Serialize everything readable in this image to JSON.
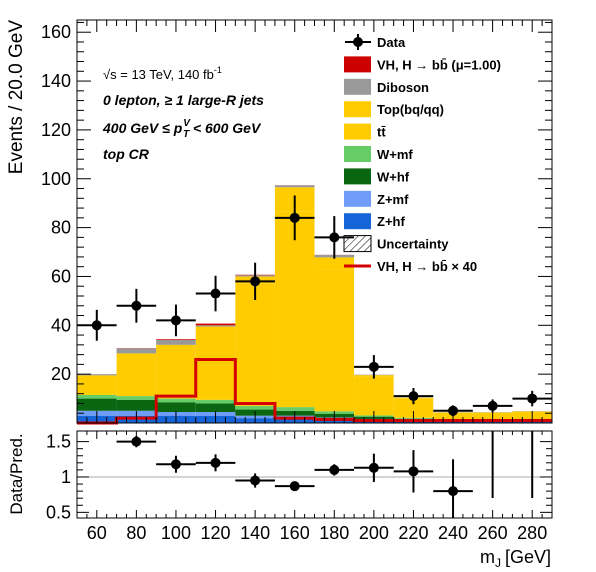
{
  "chart_data": {
    "type": "bar",
    "x_bin_edges": [
      50,
      70,
      90,
      110,
      130,
      150,
      170,
      190,
      210,
      230,
      250,
      270,
      290
    ],
    "xlabel": "m",
    "xlabel_sub": "J",
    "xlabel_unit": "[GeV]",
    "xticks": [
      "60",
      "80",
      "100",
      "120",
      "140",
      "160",
      "180",
      "200",
      "220",
      "240",
      "260",
      "280"
    ],
    "xtick_values": [
      60,
      80,
      100,
      120,
      140,
      160,
      180,
      200,
      220,
      240,
      260,
      280
    ],
    "main": {
      "ylabel": "Events / 20.0 GeV",
      "ylim": [
        0,
        165
      ],
      "yticks": [
        "20",
        "40",
        "60",
        "80",
        "100",
        "120",
        "140",
        "160"
      ],
      "ytick_values": [
        20,
        40,
        60,
        80,
        100,
        120,
        140,
        160
      ],
      "annotations": {
        "line1": "√s = 13 TeV, 140 fb",
        "line1_sup": "-1",
        "line2": "0 lepton, ≥ 1 large-R jets",
        "line3_a": "400 GeV  ≤ p",
        "line3_sup": "V",
        "line3_sub": "T",
        "line3_b": " < 600 GeV",
        "line4": "top CR"
      },
      "stack": [
        {
          "name": "Z+hf",
          "color": "#1565d8",
          "values": [
            3,
            3,
            3,
            3,
            2,
            2,
            1.5,
            1,
            0.5,
            0.5,
            0.5,
            0.5
          ]
        },
        {
          "name": "Z+mf",
          "color": "#6f9df7",
          "values": [
            2,
            2,
            1.5,
            1.5,
            1,
            1,
            0.8,
            0.6,
            0.4,
            0.3,
            0.3,
            0.3
          ]
        },
        {
          "name": "W+hf",
          "color": "#0a6610",
          "values": [
            5,
            4.5,
            4,
            3.5,
            2.5,
            2,
            1.5,
            1,
            0.7,
            0.5,
            0.5,
            0.5
          ]
        },
        {
          "name": "W+mf",
          "color": "#66cc66",
          "values": [
            1.5,
            1.5,
            1.5,
            1.5,
            1.5,
            1.5,
            1,
            0.5,
            0.5,
            0.3,
            0.3,
            0.3
          ]
        },
        {
          "name": "tt̄",
          "color": "#ffcc00",
          "values": [
            8,
            17.5,
            22,
            30,
            50,
            80,
            58,
            16,
            8,
            2.5,
            2.5,
            3
          ]
        },
        {
          "name": "Top(bq/qq)",
          "color": "#ffcc00",
          "values": [
            0,
            0,
            0,
            0,
            3,
            10,
            5,
            0.5,
            0.3,
            0.2,
            0.2,
            0.2
          ]
        },
        {
          "name": "Diboson",
          "color": "#999999",
          "values": [
            0.5,
            2,
            2,
            0.5,
            0.5,
            0.8,
            1,
            0.2,
            0.1,
            0.1,
            0.1,
            0.1
          ]
        },
        {
          "name": "VH, H → bb̄ (μ=1.00)",
          "color": "#cc0000",
          "values": [
            0,
            0.1,
            0.3,
            0.7,
            0.2,
            0.05,
            0.05,
            0,
            0,
            0,
            0,
            0
          ]
        }
      ],
      "signal_x40": {
        "name": "VH, H  → bb̄  × 40",
        "color": "#d40000",
        "values": [
          0,
          2,
          11,
          26,
          8,
          2,
          1.5,
          1,
          1,
          1,
          1,
          1
        ]
      },
      "data": {
        "name": "Data",
        "values": [
          40,
          48,
          42,
          53,
          58,
          84,
          76,
          23,
          11,
          5,
          7,
          10
        ]
      },
      "legend_placement": "top-right",
      "legend": [
        {
          "label": "Data",
          "kind": "marker"
        },
        {
          "label": "VH, H  → bb̄ (μ=1.00)",
          "kind": "box",
          "color": "#cc0000"
        },
        {
          "label": "Diboson",
          "kind": "box",
          "color": "#999999"
        },
        {
          "label": "Top(bq/qq)",
          "kind": "box",
          "color": "#ffcc00"
        },
        {
          "label": "tt̄",
          "kind": "box",
          "color": "#ffcc00"
        },
        {
          "label": "W+mf",
          "kind": "box",
          "color": "#66cc66"
        },
        {
          "label": "W+hf",
          "kind": "box",
          "color": "#0a6610"
        },
        {
          "label": "Z+mf",
          "kind": "box",
          "color": "#6f9df7"
        },
        {
          "label": "Z+hf",
          "kind": "box",
          "color": "#1565d8"
        },
        {
          "label": "Uncertainty",
          "kind": "hatch"
        },
        {
          "label": "VH, H  → bb̄  × 40",
          "kind": "line",
          "color": "#d40000"
        }
      ]
    },
    "ratio": {
      "ylabel": "Data/Pred.",
      "ylim": [
        0.42,
        1.65
      ],
      "yticks": [
        "0.5",
        "1",
        "1.5"
      ],
      "ytick_values": [
        0.5,
        1,
        1.5
      ],
      "reference": 1,
      "values": [
        null,
        1.5,
        1.18,
        1.2,
        0.95,
        0.87,
        1.1,
        1.13,
        1.08,
        0.8,
        null,
        null
      ],
      "err_lo": [
        0,
        0.08,
        0.12,
        0.12,
        0.1,
        0.06,
        0.08,
        0.2,
        0.3,
        0.45,
        0,
        0
      ],
      "err_hi": [
        0,
        0.08,
        0.12,
        0.12,
        0.1,
        0.06,
        0.08,
        0.2,
        0.3,
        0.45,
        0,
        0
      ],
      "offscale_bins": [
        10,
        11
      ]
    }
  }
}
